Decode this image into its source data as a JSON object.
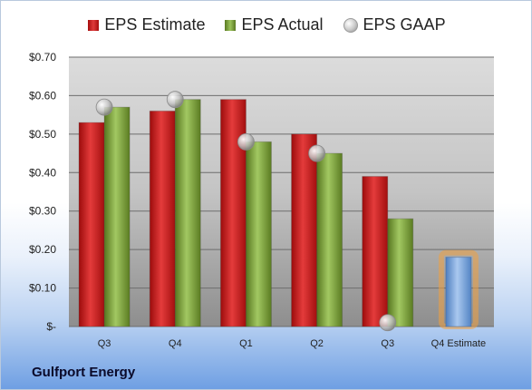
{
  "chart_data": {
    "type": "bar",
    "categories": [
      "Q3",
      "Q4",
      "Q1",
      "Q2",
      "Q3",
      "Q4 Estimate"
    ],
    "series": [
      {
        "name": "EPS Estimate",
        "values": [
          0.53,
          0.56,
          0.59,
          0.5,
          0.39,
          null
        ],
        "color": "#c81e1e"
      },
      {
        "name": "EPS Actual",
        "values": [
          0.57,
          0.59,
          0.48,
          0.45,
          0.28,
          null
        ],
        "color": "#7da33e"
      },
      {
        "name": "EPS GAAP",
        "values": [
          0.57,
          0.59,
          0.48,
          0.45,
          0.01,
          null
        ],
        "color": "#b8b8b8"
      }
    ],
    "projection": {
      "category": "Q4 Estimate",
      "value": 0.18,
      "color": "#6f9fd8",
      "glow": "#f0a040"
    },
    "ylim": [
      0,
      0.7
    ],
    "yticks": [
      0,
      0.1,
      0.2,
      0.3,
      0.4,
      0.5,
      0.6,
      0.7
    ],
    "ytick_labels": [
      "$-",
      "$0.10",
      "$0.20",
      "$0.30",
      "$0.40",
      "$0.50",
      "$0.60",
      "$0.70"
    ],
    "grid": true,
    "legend_position": "top"
  },
  "footer": {
    "company": "Gulfport Energy"
  }
}
